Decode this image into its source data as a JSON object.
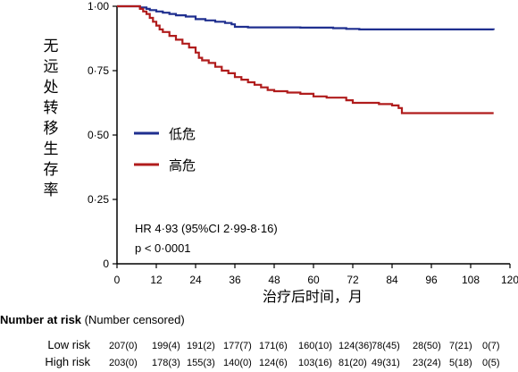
{
  "chart_data": {
    "type": "line",
    "subtype": "kaplan-meier",
    "ylabel": "无远处转移生存率",
    "xlabel": "治疗后时间，月",
    "xlim": [
      0,
      120
    ],
    "ylim": [
      0,
      1
    ],
    "x_ticks": [
      "0",
      "12",
      "24",
      "36",
      "48",
      "60",
      "72",
      "84",
      "96",
      "108",
      "120"
    ],
    "y_ticks": [
      {
        "value": 0,
        "label": "0"
      },
      {
        "value": 0.25,
        "label": "0·25"
      },
      {
        "value": 0.5,
        "label": "0·50"
      },
      {
        "value": 0.75,
        "label": "0·75"
      },
      {
        "value": 1.0,
        "label": "1·00"
      }
    ],
    "grid": false,
    "legend_position": "center-left",
    "series": [
      {
        "name": "低危",
        "color": "#1f2f8f",
        "points": [
          [
            0,
            1.0
          ],
          [
            6,
            1.0
          ],
          [
            7,
            0.995
          ],
          [
            9,
            0.99
          ],
          [
            10,
            0.985
          ],
          [
            12,
            0.98
          ],
          [
            14,
            0.975
          ],
          [
            16,
            0.97
          ],
          [
            18,
            0.965
          ],
          [
            21,
            0.96
          ],
          [
            24,
            0.95
          ],
          [
            27,
            0.945
          ],
          [
            30,
            0.94
          ],
          [
            33,
            0.935
          ],
          [
            35,
            0.93
          ],
          [
            36,
            0.92
          ],
          [
            40,
            0.918
          ],
          [
            48,
            0.918
          ],
          [
            56,
            0.917
          ],
          [
            62,
            0.917
          ],
          [
            66,
            0.915
          ],
          [
            70,
            0.912
          ],
          [
            74,
            0.91
          ],
          [
            96,
            0.91
          ],
          [
            115,
            0.908
          ]
        ]
      },
      {
        "name": "高危",
        "color": "#b01c1c",
        "points": [
          [
            0,
            1.0
          ],
          [
            6,
            1.0
          ],
          [
            7,
            0.99
          ],
          [
            8,
            0.98
          ],
          [
            9,
            0.97
          ],
          [
            10,
            0.955
          ],
          [
            11,
            0.94
          ],
          [
            12,
            0.925
          ],
          [
            13,
            0.91
          ],
          [
            14,
            0.9
          ],
          [
            16,
            0.885
          ],
          [
            18,
            0.87
          ],
          [
            20,
            0.855
          ],
          [
            22,
            0.84
          ],
          [
            24,
            0.82
          ],
          [
            25,
            0.8
          ],
          [
            26,
            0.79
          ],
          [
            28,
            0.78
          ],
          [
            30,
            0.765
          ],
          [
            32,
            0.75
          ],
          [
            34,
            0.74
          ],
          [
            36,
            0.725
          ],
          [
            38,
            0.715
          ],
          [
            40,
            0.705
          ],
          [
            42,
            0.695
          ],
          [
            44,
            0.685
          ],
          [
            46,
            0.675
          ],
          [
            48,
            0.67
          ],
          [
            52,
            0.665
          ],
          [
            56,
            0.66
          ],
          [
            60,
            0.65
          ],
          [
            64,
            0.645
          ],
          [
            70,
            0.635
          ],
          [
            72,
            0.625
          ],
          [
            78,
            0.625
          ],
          [
            80,
            0.62
          ],
          [
            82,
            0.62
          ],
          [
            84,
            0.615
          ],
          [
            86,
            0.605
          ],
          [
            87,
            0.585
          ],
          [
            96,
            0.585
          ],
          [
            108,
            0.585
          ],
          [
            115,
            0.585
          ]
        ]
      }
    ],
    "annotations": [
      "HR 4·93 (95%CI 2·99-8·16)",
      "p < 0·0001"
    ],
    "risk_table": {
      "title_bold": "Number at risk",
      "title_rest": " (Number censored)",
      "rows": [
        {
          "label": "Low risk",
          "values": [
            "207(0)",
            "199(4)",
            "191(2)",
            "177(7)",
            "171(6)",
            "160(10)",
            "124(36)",
            "78(45)",
            "28(50)",
            "7(21)",
            "0(7)"
          ]
        },
        {
          "label": "High risk",
          "values": [
            "203(0)",
            "178(3)",
            "155(3)",
            "140(0)",
            "124(6)",
            "103(16)",
            "81(20)",
            "49(31)",
            "23(24)",
            "5(18)",
            "0(5)"
          ]
        }
      ]
    }
  }
}
